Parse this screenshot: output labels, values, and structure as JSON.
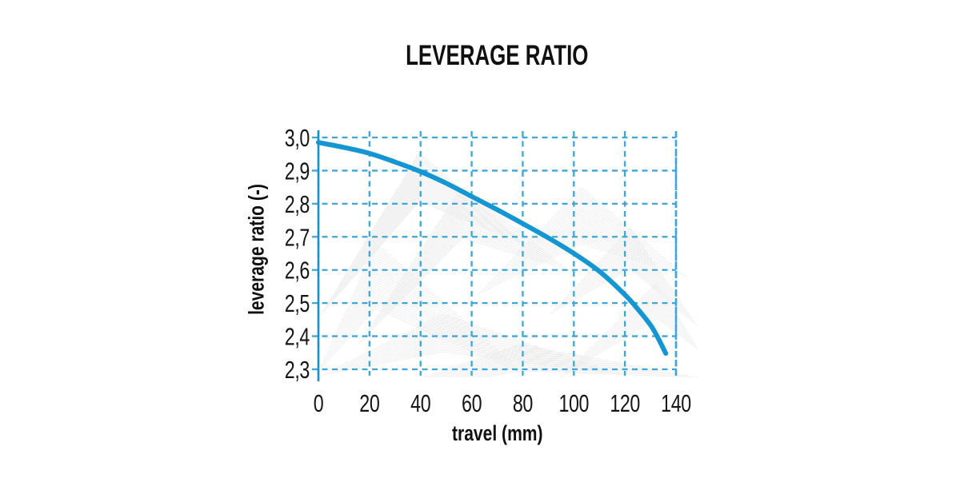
{
  "page": {
    "background": "#ffffff"
  },
  "chart_data": {
    "type": "line",
    "title": "LEVERAGE RATIO",
    "xlabel": "travel (mm)",
    "ylabel": "leverage ratio (-)",
    "xlim": [
      0,
      140
    ],
    "ylim": [
      2.3,
      3.0
    ],
    "xticks": [
      0,
      20,
      40,
      60,
      80,
      100,
      120,
      140
    ],
    "ytick_labels": [
      "3,0",
      "2,9",
      "2,8",
      "2,7",
      "2,6",
      "2,5",
      "2,4",
      "2,3"
    ],
    "ytick_values": [
      3.0,
      2.9,
      2.8,
      2.7,
      2.6,
      2.5,
      2.4,
      2.3
    ],
    "grid": "dashed",
    "legend_position": "none",
    "decimal_separator_y": ",",
    "series": [
      {
        "name": "leverage ratio",
        "color": "#1496d2",
        "points": [
          [
            0,
            2.985
          ],
          [
            10,
            2.97
          ],
          [
            20,
            2.952
          ],
          [
            30,
            2.926
          ],
          [
            40,
            2.897
          ],
          [
            50,
            2.862
          ],
          [
            60,
            2.822
          ],
          [
            70,
            2.782
          ],
          [
            80,
            2.74
          ],
          [
            90,
            2.697
          ],
          [
            100,
            2.65
          ],
          [
            110,
            2.596
          ],
          [
            120,
            2.525
          ],
          [
            126,
            2.473
          ],
          [
            131,
            2.422
          ],
          [
            136,
            2.348
          ]
        ]
      }
    ]
  },
  "style": {
    "curve_color": "#1496d2",
    "grid_color": "#3ea6db",
    "axis_color": "#1b8fd0",
    "text_color": "#101010",
    "watermark_color": "#ececec",
    "background": "#ffffff"
  }
}
